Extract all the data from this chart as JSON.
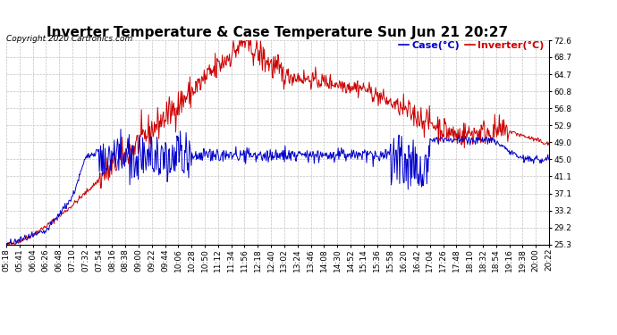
{
  "title": "Inverter Temperature & Case Temperature Sun Jun 21 20:27",
  "copyright": "Copyright 2020 Cartronics.com",
  "legend_case": "Case(°C)",
  "legend_inverter": "Inverter(°C)",
  "case_color": "#0000cc",
  "inverter_color": "#cc0000",
  "background_color": "#ffffff",
  "grid_color": "#bbbbbb",
  "ylim_min": 25.3,
  "ylim_max": 72.6,
  "yticks": [
    25.3,
    29.2,
    33.2,
    37.1,
    41.1,
    45.0,
    49.0,
    52.9,
    56.8,
    60.8,
    64.7,
    68.7,
    72.6
  ],
  "x_labels": [
    "05:18",
    "05:41",
    "06:04",
    "06:26",
    "06:48",
    "07:10",
    "07:32",
    "07:54",
    "08:16",
    "08:38",
    "09:00",
    "09:22",
    "09:44",
    "10:06",
    "10:28",
    "10:50",
    "11:12",
    "11:34",
    "11:56",
    "12:18",
    "12:40",
    "13:02",
    "13:24",
    "13:46",
    "14:08",
    "14:30",
    "14:52",
    "15:14",
    "15:36",
    "15:58",
    "16:20",
    "16:42",
    "17:04",
    "17:26",
    "17:48",
    "18:10",
    "18:32",
    "18:54",
    "19:16",
    "19:38",
    "20:00",
    "20:22"
  ],
  "title_fontsize": 11,
  "tick_fontsize": 6.5,
  "legend_fontsize": 8,
  "copyright_fontsize": 6.5
}
